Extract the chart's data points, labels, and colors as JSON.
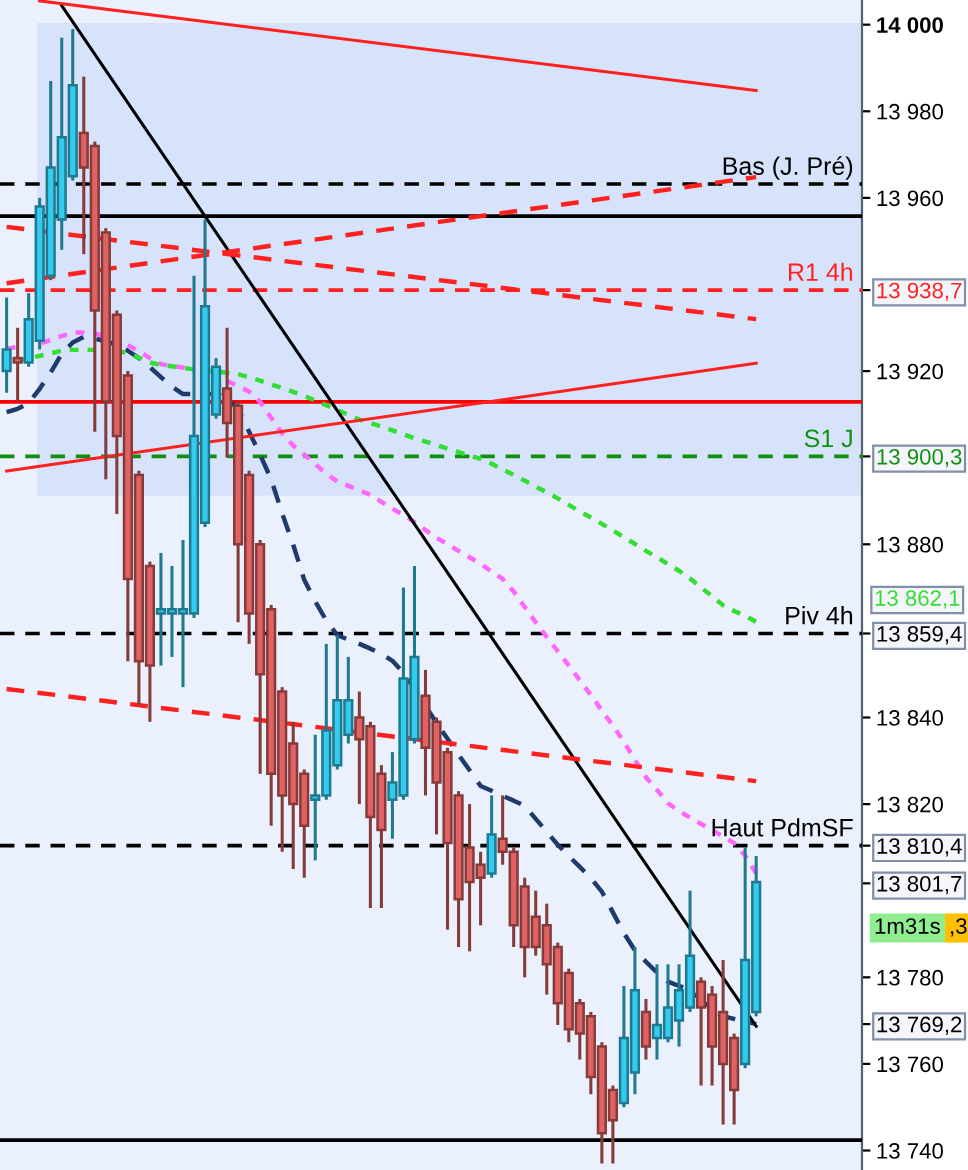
{
  "chart_data": {
    "type": "candlestick",
    "categories": [
      null,
      null,
      null,
      null,
      null,
      null,
      null,
      null,
      null,
      null,
      null,
      null,
      null,
      null,
      null,
      null,
      null,
      null,
      null,
      null,
      null,
      null,
      null,
      null,
      null,
      null,
      null,
      null,
      null,
      null,
      null,
      null,
      null,
      null,
      null,
      null,
      null,
      null,
      null,
      null,
      null,
      null,
      null,
      null,
      null,
      null,
      null,
      null,
      null,
      null,
      null,
      null,
      null,
      null,
      null,
      null,
      null,
      null,
      null,
      null,
      null,
      null,
      null,
      null,
      null,
      null,
      null,
      null,
      null
    ],
    "ohlc": [
      [
        13920,
        13937,
        13915,
        13925
      ],
      [
        13923,
        13930,
        13913,
        13922
      ],
      [
        13922,
        13938,
        13921,
        13932
      ],
      [
        13927,
        13960,
        13925,
        13958
      ],
      [
        13942,
        13987,
        13941,
        13967
      ],
      [
        13955,
        13997,
        13948,
        13974
      ],
      [
        13965,
        13999,
        13964,
        13986
      ],
      [
        13975,
        13988,
        13947,
        13967
      ],
      [
        13972,
        13973,
        13906,
        13934
      ],
      [
        13952,
        13953,
        13895,
        13913
      ],
      [
        13933,
        13934,
        13887,
        13905
      ],
      [
        13919,
        13920,
        13853,
        13872
      ],
      [
        13896,
        13897,
        13843,
        13853
      ],
      [
        13875,
        13876,
        13839,
        13852
      ],
      [
        13864,
        13878,
        13852,
        13865
      ],
      [
        13864,
        13875,
        13854,
        13865
      ],
      [
        13864,
        13881,
        13847,
        13865
      ],
      [
        13864,
        13942,
        13863,
        13905
      ],
      [
        13885,
        13955,
        13884,
        13935
      ],
      [
        13910,
        13923,
        13909,
        13921
      ],
      [
        13916,
        13930,
        13900,
        13908
      ],
      [
        13912,
        13913,
        13862,
        13880
      ],
      [
        13896,
        13897,
        13857,
        13864
      ],
      [
        13880,
        13881,
        13827,
        13850
      ],
      [
        13865,
        13866,
        13815,
        13827
      ],
      [
        13846,
        13847,
        13809,
        13822
      ],
      [
        13834,
        13839,
        13805,
        13820
      ],
      [
        13827,
        13828,
        13803,
        13815
      ],
      [
        13821,
        13836,
        13807,
        13822
      ],
      [
        13822,
        13857,
        13821,
        13837
      ],
      [
        13829,
        13859,
        13828,
        13844
      ],
      [
        13836,
        13854,
        13834,
        13844
      ],
      [
        13840,
        13846,
        13820,
        13835
      ],
      [
        13838,
        13839,
        13796,
        13817
      ],
      [
        13827,
        13829,
        13796,
        13814
      ],
      [
        13821,
        13832,
        13812,
        13825
      ],
      [
        13822,
        13870,
        13821,
        13849
      ],
      [
        13835,
        13875,
        13834,
        13854
      ],
      [
        13845,
        13851,
        13822,
        13833
      ],
      [
        13839,
        13840,
        13813,
        13825
      ],
      [
        13832,
        13833,
        13791,
        13811
      ],
      [
        13822,
        13823,
        13787,
        13798
      ],
      [
        13810,
        13820,
        13786,
        13802
      ],
      [
        13806,
        13809,
        13792,
        13803
      ],
      [
        13804,
        13822,
        13803,
        13813
      ],
      [
        13812,
        13822,
        13806,
        13809
      ],
      [
        13809,
        13810,
        13787,
        13792
      ],
      [
        13801,
        13803,
        13780,
        13787
      ],
      [
        13794,
        13800,
        13785,
        13787
      ],
      [
        13792,
        13797,
        13776,
        13783
      ],
      [
        13787,
        13788,
        13769,
        13774
      ],
      [
        13781,
        13782,
        13765,
        13768
      ],
      [
        13774,
        13775,
        13761,
        13767
      ],
      [
        13771,
        13772,
        13753,
        13757
      ],
      [
        13764,
        13765,
        13737,
        13744
      ],
      [
        13754,
        13755,
        13737,
        13747
      ],
      [
        13751,
        13778,
        13750,
        13766
      ],
      [
        13758,
        13787,
        13753,
        13777
      ],
      [
        13772,
        13775,
        13761,
        13764
      ],
      [
        13766,
        13783,
        13761,
        13769
      ],
      [
        13766,
        13783,
        13765,
        13773
      ],
      [
        13770,
        13783,
        13764,
        13777
      ],
      [
        13773,
        13800,
        13772,
        13785
      ],
      [
        13779,
        13780,
        13755,
        13773
      ],
      [
        13776,
        13778,
        13755,
        13764
      ],
      [
        13772,
        13784,
        13746,
        13760
      ],
      [
        13766,
        13767,
        13746,
        13754
      ],
      [
        13760,
        13810,
        13759,
        13784
      ],
      [
        13772,
        13808,
        13771,
        13802
      ]
    ],
    "colors": [
      "#33ccf0",
      "#e06262",
      "#33ccf0",
      "#33ccf0",
      "#33ccf0",
      "#33ccf0",
      "#33ccf0",
      "#e06262",
      "#e06262",
      "#e06262",
      "#e06262",
      "#e06262",
      "#e06262",
      "#e06262",
      "#33ccf0",
      "#33ccf0",
      "#33ccf0",
      "#33ccf0",
      "#33ccf0",
      "#33ccf0",
      "#e06262",
      "#e06262",
      "#e06262",
      "#e06262",
      "#e06262",
      "#e06262",
      "#e06262",
      "#e06262",
      "#33ccf0",
      "#33ccf0",
      "#33ccf0",
      "#33ccf0",
      "#e06262",
      "#e06262",
      "#e06262",
      "#33ccf0",
      "#33ccf0",
      "#33ccf0",
      "#e06262",
      "#e06262",
      "#e06262",
      "#e06262",
      "#e06262",
      "#e06262",
      "#33ccf0",
      "#e06262",
      "#e06262",
      "#e06262",
      "#e06262",
      "#e06262",
      "#e06262",
      "#e06262",
      "#e06262",
      "#e06262",
      "#e06262",
      "#e06262",
      "#33ccf0",
      "#33ccf0",
      "#e06262",
      "#33ccf0",
      "#33ccf0",
      "#33ccf0",
      "#33ccf0",
      "#e06262",
      "#e06262",
      "#e06262",
      "#e06262",
      "#33ccf0",
      "#33ccf0"
    ],
    "series": [
      {
        "type": "line",
        "color": "#1f3b6e",
        "line_style": "dashed",
        "values": [
          13910.5,
          13911.3,
          13912.6,
          13915.9,
          13919.7,
          13924.0,
          13926.6,
          13927.9,
          13927.5,
          13926.9,
          13926.0,
          13924.7,
          13923.0,
          13920.9,
          13918.6,
          13916.4,
          13914.7,
          13914.7,
          13914.7,
          13914.7,
          13914.0,
          13911.0,
          13906.0,
          13900.7,
          13895.0,
          13887.1,
          13879.9,
          13871.8,
          13866.8,
          13862.4,
          13859.0,
          13858.0,
          13857.0,
          13855.9,
          13854.7,
          13853.1,
          13850.3,
          13846.7,
          13842.7,
          13838.7,
          13835.1,
          13831.4,
          13827.8,
          13824.2,
          13823.1,
          13821.9,
          13820.8,
          13819.6,
          13816.6,
          13813.6,
          13810.6,
          13808.0,
          13805.5,
          13802.9,
          13799.8,
          13795.0,
          13790.2,
          13786.2,
          13783.6,
          13781.1,
          13779.0,
          13778.0,
          13777.1,
          13774.8,
          13772.5,
          13771.0,
          13770.4,
          13769.8,
          13769.2
        ]
      },
      {
        "type": "line",
        "color": "#ff66ff",
        "line_style": "dotted",
        "values": [
          13925.2,
          13925.6,
          13925.9,
          13926.3,
          13927.2,
          13928.1,
          13928.9,
          13928.9,
          13928.7,
          13928.0,
          null,
          13926.0,
          13924.6,
          13923.0,
          13921.6,
          13921.2,
          13920.8,
          13920.4,
          null,
          null,
          13917.7,
          13916.5,
          13915.3,
          13912.9,
          13909.2,
          13905.6,
          13902.8,
          13900.7,
          13898.5,
          13896.3,
          13894.5,
          13893.5,
          13892.5,
          13891.4,
          13889.8,
          13888.2,
          13886.8,
          13885.1,
          13883.3,
          13881.5,
          13880.0,
          13878.5,
          13877.0,
          13875.5,
          13873.7,
          13872.0,
          13869.1,
          13865.5,
          13862.0,
          13858.6,
          13855.3,
          13852.0,
          13848.6,
          13845.2,
          13841.6,
          13838.1,
          13834.4,
          13830.2,
          13826.2,
          13823.3,
          13820.2,
          13818.4,
          13816.9,
          13815.4,
          13814.0,
          13812.5,
          13811.0,
          13808.1,
          13804.0
        ]
      },
      {
        "type": "line",
        "color": "#33dd33",
        "line_style": "dotted",
        "values": [
          null,
          13922.3,
          13923.0,
          13923.5,
          13924.1,
          13924.7,
          13924.9,
          13924.9,
          13924.9,
          null,
          13924.8,
          13924.0,
          13923.1,
          13922.0,
          13921.4,
          13921.1,
          13920.7,
          13920.4,
          13920.1,
          13919.9,
          13919.6,
          13919.3,
          13918.6,
          13917.8,
          13916.9,
          13916.1,
          13915.2,
          13914.3,
          13913.2,
          13912.1,
          13911.0,
          13909.9,
          13908.8,
          13908.0,
          13907.2,
          13906.3,
          13905.4,
          13904.5,
          13903.7,
          13902.9,
          13902.1,
          13901.3,
          13900.5,
          13899.7,
          13898.6,
          13897.3,
          13896.0,
          13894.7,
          13893.3,
          13892.0,
          13890.6,
          13889.1,
          13887.6,
          13886.2,
          13884.7,
          13883.2,
          13881.6,
          13880.1,
          13878.5,
          13877.0,
          13875.4,
          13873.9,
          13872.1,
          13870.0,
          13868.0,
          13865.9,
          13864.6,
          13863.5,
          13862.1
        ]
      },
      {
        "type": "line",
        "color": "#000000",
        "line_style": "solid",
        "values": [
          null,
          null,
          null,
          null,
          null,
          14004.4,
          null,
          null,
          null,
          null,
          null,
          null,
          null,
          null,
          null,
          null,
          null,
          null,
          null,
          null,
          null,
          null,
          null,
          null,
          null,
          null,
          null,
          null,
          null,
          null,
          null,
          null,
          null,
          null,
          null,
          null,
          null,
          null,
          null,
          null,
          null,
          null,
          null,
          null,
          null,
          null,
          null,
          null,
          null,
          null,
          null,
          null,
          null,
          null,
          null,
          null,
          null,
          null,
          null,
          null,
          null,
          null,
          null,
          null,
          null,
          null,
          null,
          null,
          13768.7
        ]
      },
      {
        "type": "line",
        "color": "#ff2020",
        "line_style": "solid",
        "values": [
          null,
          null,
          null,
          14005.5,
          null,
          null,
          null,
          null,
          null,
          null,
          null,
          null,
          null,
          null,
          null,
          null,
          null,
          null,
          null,
          null,
          null,
          null,
          null,
          null,
          null,
          null,
          null,
          null,
          null,
          null,
          null,
          null,
          null,
          null,
          null,
          null,
          null,
          null,
          null,
          null,
          null,
          null,
          null,
          null,
          null,
          null,
          null,
          null,
          null,
          null,
          null,
          null,
          null,
          null,
          null,
          null,
          null,
          null,
          null,
          null,
          null,
          null,
          null,
          null,
          null,
          null,
          null,
          null,
          13984.8
        ]
      },
      {
        "type": "line",
        "color": "#ff2020",
        "line_style": "dashed",
        "values": [
          13940.3,
          null,
          null,
          null,
          null,
          null,
          null,
          null,
          null,
          null,
          null,
          null,
          null,
          null,
          null,
          null,
          null,
          null,
          null,
          null,
          null,
          null,
          null,
          null,
          null,
          null,
          null,
          null,
          null,
          null,
          null,
          null,
          null,
          null,
          null,
          null,
          null,
          null,
          null,
          null,
          null,
          null,
          null,
          null,
          null,
          null,
          null,
          null,
          null,
          null,
          null,
          null,
          null,
          null,
          null,
          null,
          null,
          null,
          null,
          null,
          null,
          null,
          null,
          null,
          null,
          null,
          null,
          null,
          13964.8
        ]
      },
      {
        "type": "line",
        "color": "#ff2020",
        "line_style": "dashed",
        "values": [
          13953.3,
          null,
          null,
          null,
          null,
          null,
          null,
          null,
          null,
          null,
          null,
          null,
          null,
          null,
          null,
          null,
          null,
          null,
          null,
          null,
          null,
          null,
          null,
          null,
          null,
          null,
          null,
          null,
          null,
          null,
          null,
          null,
          null,
          null,
          null,
          null,
          null,
          null,
          null,
          null,
          null,
          null,
          null,
          null,
          null,
          null,
          null,
          null,
          null,
          null,
          null,
          null,
          null,
          null,
          null,
          null,
          null,
          null,
          null,
          null,
          null,
          null,
          null,
          null,
          null,
          null,
          null,
          null,
          13932.0
        ]
      },
      {
        "type": "line",
        "color": "#ff2020",
        "line_style": "solid",
        "values": [
          13896.9,
          null,
          null,
          null,
          null,
          null,
          null,
          null,
          null,
          null,
          null,
          null,
          null,
          null,
          null,
          null,
          null,
          null,
          null,
          null,
          null,
          null,
          null,
          null,
          null,
          null,
          null,
          null,
          null,
          null,
          null,
          null,
          null,
          null,
          null,
          null,
          null,
          null,
          null,
          null,
          null,
          null,
          null,
          null,
          null,
          null,
          null,
          null,
          null,
          null,
          null,
          null,
          null,
          null,
          null,
          null,
          null,
          null,
          null,
          null,
          null,
          null,
          null,
          null,
          null,
          null,
          null,
          null,
          13921.8
        ]
      },
      {
        "type": "line",
        "color": "#ff2020",
        "line_style": "dashed",
        "values": [
          13846.6,
          null,
          null,
          null,
          null,
          null,
          null,
          null,
          null,
          null,
          null,
          null,
          null,
          null,
          null,
          null,
          null,
          null,
          null,
          null,
          null,
          null,
          null,
          null,
          null,
          null,
          null,
          null,
          null,
          null,
          null,
          null,
          null,
          null,
          null,
          null,
          null,
          null,
          null,
          null,
          null,
          null,
          null,
          null,
          null,
          null,
          null,
          null,
          null,
          null,
          null,
          null,
          null,
          null,
          null,
          null,
          null,
          null,
          null,
          null,
          null,
          null,
          null,
          null,
          null,
          null,
          null,
          null,
          13825.3
        ]
      }
    ],
    "ref_lines": [
      {
        "axis": "y",
        "value": 13963.2,
        "label": "Bas (J. Pré)",
        "color": "#000000",
        "line_style": "dashed"
      },
      {
        "axis": "y",
        "value": 13955.8,
        "color": "#000000",
        "line_style": "solid"
      },
      {
        "axis": "y",
        "value": 13938.7,
        "label": "R1 4h",
        "color": "#ff2020",
        "line_style": "dashed"
      },
      {
        "axis": "y",
        "value": 13912.9,
        "color": "#ff0000",
        "line_style": "solid"
      },
      {
        "axis": "y",
        "value": 13900.3,
        "label": "S1 J",
        "color": "#109010",
        "line_style": "dashed"
      },
      {
        "axis": "y",
        "value": 13859.4,
        "label": "Piv 4h",
        "color": "#000000",
        "line_style": "dashed"
      },
      {
        "axis": "y",
        "value": 13810.4,
        "label": "Haut PdmSF",
        "color": "#000000",
        "line_style": "dashed"
      },
      {
        "axis": "y",
        "value": 13742.4,
        "color": "#000000",
        "line_style": "solid"
      }
    ],
    "bands": [
      {
        "axis": "y",
        "from": 13891.6,
        "to": 14000,
        "color": "#6f9cf0"
      }
    ],
    "ylim": [
      13735.5,
      14005.7
    ],
    "yticks": [
      {
        "value": 13740,
        "label": "13 740"
      },
      {
        "value": 13760,
        "label": "13 760"
      },
      {
        "value": 13780,
        "label": "13 780"
      },
      {
        "value": 13820,
        "label": "13 820"
      },
      {
        "value": 13840,
        "label": "13 840"
      },
      {
        "value": 13880,
        "label": "13 880"
      },
      {
        "value": 13920,
        "label": "13 920"
      },
      {
        "value": 13960,
        "label": "13 960"
      },
      {
        "value": 13980,
        "label": "13 980"
      },
      {
        "value": 14000,
        "label": "14 000"
      },
      {
        "value": 13938.7,
        "label": "13 938,7"
      },
      {
        "value": 13900.3,
        "label": "13 900,3"
      },
      {
        "value": 13859.4,
        "label": "13 859,4"
      },
      {
        "value": 13810.4,
        "label": "13 810,4"
      },
      {
        "value": 13801.7,
        "label": "13 801,7"
      },
      {
        "value": 13769.2,
        "label": "13 769,2"
      }
    ],
    "tick_labels": "y",
    "annotations": [
      "1m31s",
      ",3",
      "13 862,1"
    ],
    "grid": false,
    "legend": false
  }
}
